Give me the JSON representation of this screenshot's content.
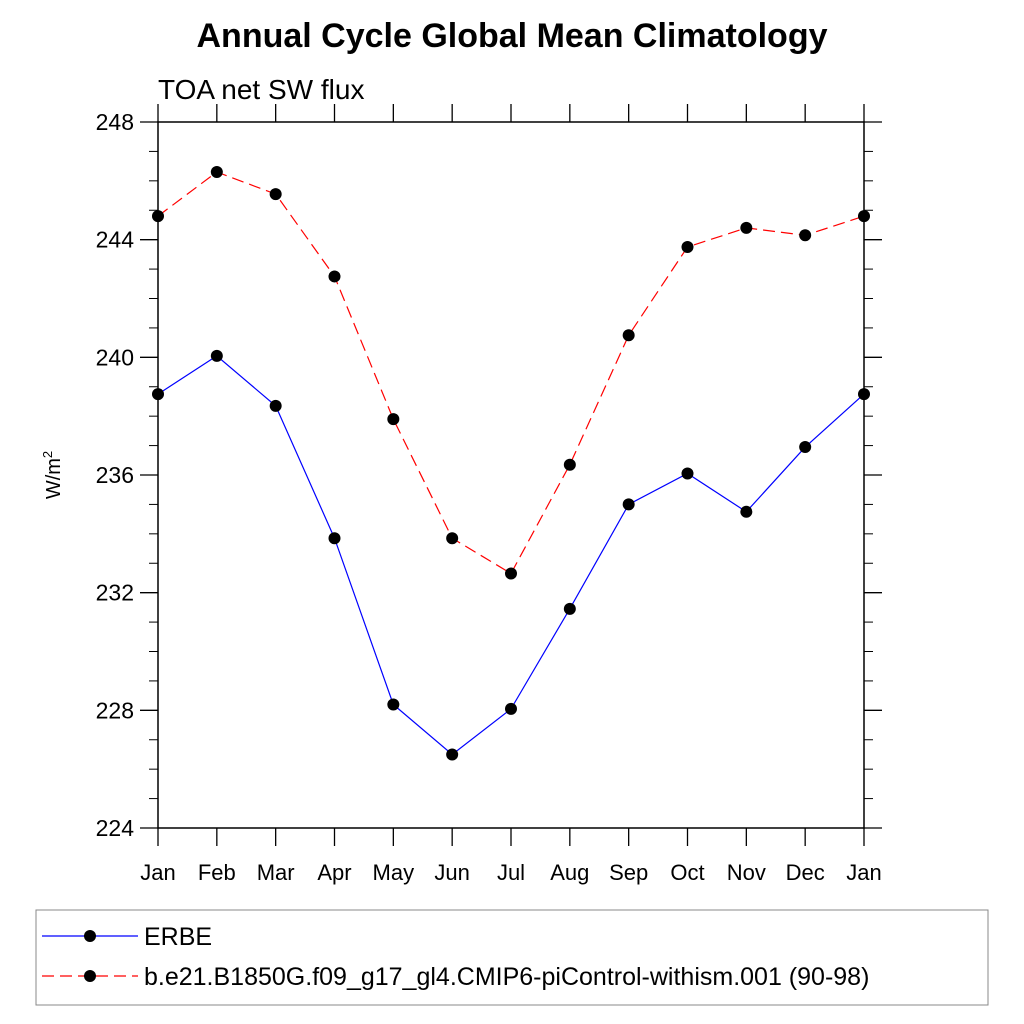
{
  "chart_data": {
    "type": "line",
    "title": "Annual Cycle Global Mean Climatology",
    "subtitle": "TOA net SW flux",
    "ylabel_base": "W/m",
    "ylabel_sup": "2",
    "ylim": [
      224,
      248
    ],
    "yticks": [
      "224",
      "228",
      "232",
      "236",
      "240",
      "244",
      "248"
    ],
    "categories": [
      "Jan",
      "Feb",
      "Mar",
      "Apr",
      "May",
      "Jun",
      "Jul",
      "Aug",
      "Sep",
      "Oct",
      "Nov",
      "Dec",
      "Jan"
    ],
    "series": [
      {
        "name": "ERBE",
        "color": "#0000ff",
        "dash": "solid",
        "values": [
          238.75,
          240.05,
          238.35,
          233.85,
          228.2,
          226.5,
          228.05,
          231.45,
          235.0,
          236.05,
          234.75,
          236.95,
          238.75
        ]
      },
      {
        "name": "b.e21.B1850G.f09_g17_gl4.CMIP6-piControl-withism.001 (90-98)",
        "color": "#ff0000",
        "dash": "dashed",
        "values": [
          244.8,
          246.3,
          245.55,
          242.75,
          237.9,
          233.85,
          232.65,
          236.35,
          240.75,
          243.75,
          244.4,
          244.15,
          244.8
        ]
      }
    ],
    "grid": false,
    "legend_position": "bottom"
  }
}
